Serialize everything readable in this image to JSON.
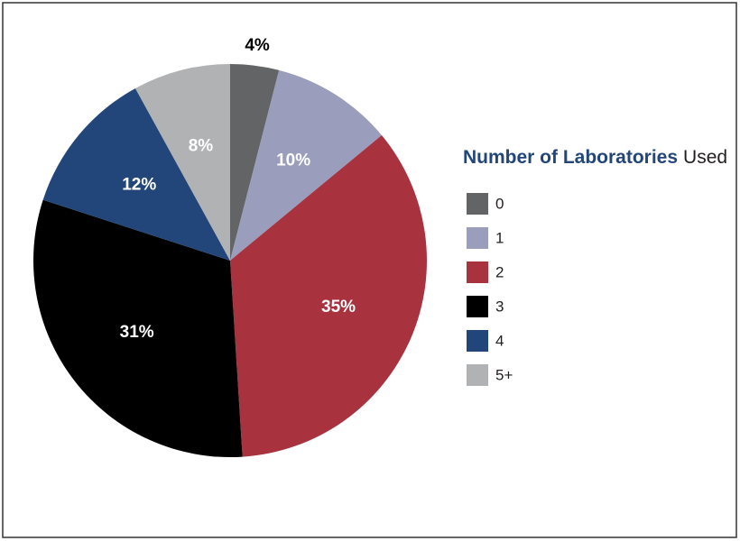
{
  "chart_data": {
    "type": "pie",
    "legend_title": [
      "Number of Laboratories",
      "Used"
    ],
    "categories": [
      "0",
      "1",
      "2",
      "3",
      "4",
      "5+"
    ],
    "values": [
      4,
      10,
      35,
      31,
      12,
      8
    ],
    "value_labels": [
      "4%",
      "10%",
      "35%",
      "31%",
      "12%",
      "8%"
    ],
    "colors": [
      "#636466",
      "#9a9dbb",
      "#a8323e",
      "#000000",
      "#23467a",
      "#b1b2b4"
    ],
    "legend": "right"
  }
}
